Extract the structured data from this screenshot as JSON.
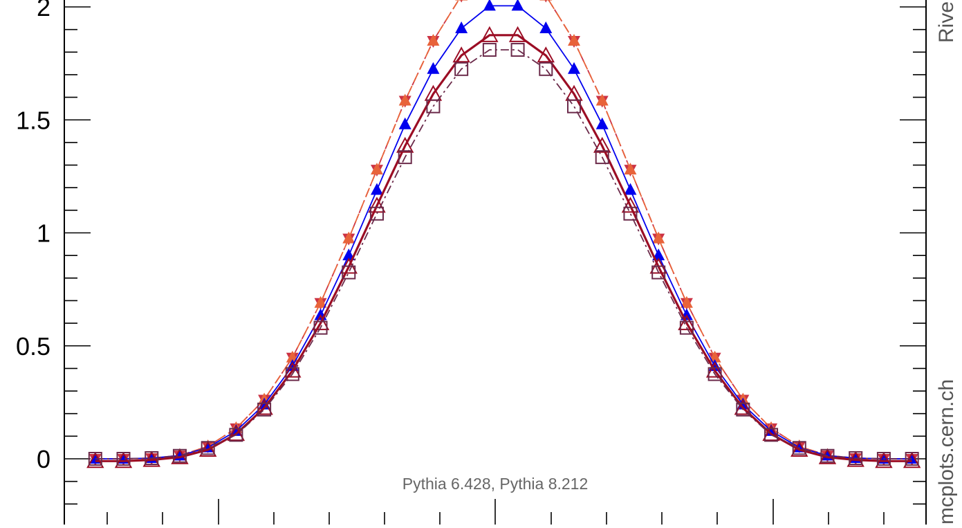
{
  "chart_data": {
    "type": "line",
    "title": "",
    "xlabel": "",
    "ylabel": "",
    "y_tick_labels": [
      "0",
      "0.5",
      "1",
      "1.5",
      "2"
    ],
    "y_ticks": [
      0,
      0.5,
      1,
      1.5,
      2
    ],
    "ylim": [
      -0.23,
      2.04
    ],
    "x_index": [
      0,
      1,
      2,
      3,
      4,
      5,
      6,
      7,
      8,
      9,
      10,
      11,
      12,
      13,
      14,
      15,
      16,
      17,
      18,
      19,
      20,
      21,
      22,
      23,
      24,
      25,
      26,
      27,
      28,
      29
    ],
    "xlim": [
      -1.1,
      29.5
    ],
    "grid": false,
    "generator_text": "Pythia 6.428, Pythia 8.212",
    "right_label_top": "Rive",
    "right_label_bottom": "mcplots.cern.ch",
    "series": [
      {
        "color": "#cc3344",
        "line": "dashdot",
        "marker": "triangle-down-filled",
        "values": [
          0.0,
          0.0,
          0.003,
          0.015,
          0.055,
          0.135,
          0.262,
          0.448,
          0.69,
          0.975,
          1.28,
          1.585,
          1.85,
          2.05,
          2.1,
          2.1,
          2.05,
          1.85,
          1.585,
          1.28,
          0.975,
          0.69,
          0.448,
          0.262,
          0.135,
          0.055,
          0.015,
          0.003,
          0.0,
          0.0
        ]
      },
      {
        "color": "#e8633a",
        "line": "dashed",
        "marker": "triangle-filled",
        "values": [
          0.0,
          0.0,
          0.003,
          0.015,
          0.055,
          0.135,
          0.262,
          0.448,
          0.69,
          0.975,
          1.28,
          1.585,
          1.85,
          2.05,
          2.1,
          2.1,
          2.05,
          1.85,
          1.585,
          1.28,
          0.975,
          0.69,
          0.448,
          0.262,
          0.135,
          0.055,
          0.015,
          0.003,
          0.0,
          0.0
        ]
      },
      {
        "color": "#0000ee",
        "line": "solid",
        "marker": "triangle-filled",
        "values": [
          0.0,
          0.0,
          0.003,
          0.014,
          0.05,
          0.123,
          0.24,
          0.41,
          0.635,
          0.9,
          1.19,
          1.48,
          1.725,
          1.905,
          2.005,
          2.005,
          1.905,
          1.725,
          1.48,
          1.19,
          0.9,
          0.635,
          0.41,
          0.24,
          0.123,
          0.05,
          0.014,
          0.003,
          0.0,
          0.0
        ]
      },
      {
        "color": "#9b0d24",
        "line": "solid-thick",
        "marker": "triangle-open",
        "values": [
          -0.01,
          -0.01,
          -0.005,
          0.007,
          0.04,
          0.11,
          0.225,
          0.39,
          0.6,
          0.85,
          1.12,
          1.385,
          1.615,
          1.785,
          1.875,
          1.875,
          1.785,
          1.615,
          1.385,
          1.12,
          0.85,
          0.6,
          0.39,
          0.225,
          0.11,
          0.04,
          0.007,
          -0.005,
          -0.01,
          -0.01
        ]
      },
      {
        "color": "#6b2a4a",
        "line": "dashdot",
        "marker": "square-open",
        "values": [
          0.0,
          0.0,
          0.003,
          0.013,
          0.048,
          0.106,
          0.218,
          0.375,
          0.58,
          0.825,
          1.085,
          1.335,
          1.56,
          1.725,
          1.81,
          1.81,
          1.725,
          1.56,
          1.335,
          1.085,
          0.825,
          0.58,
          0.375,
          0.218,
          0.106,
          0.048,
          0.013,
          0.003,
          0.0,
          0.0
        ]
      }
    ]
  }
}
